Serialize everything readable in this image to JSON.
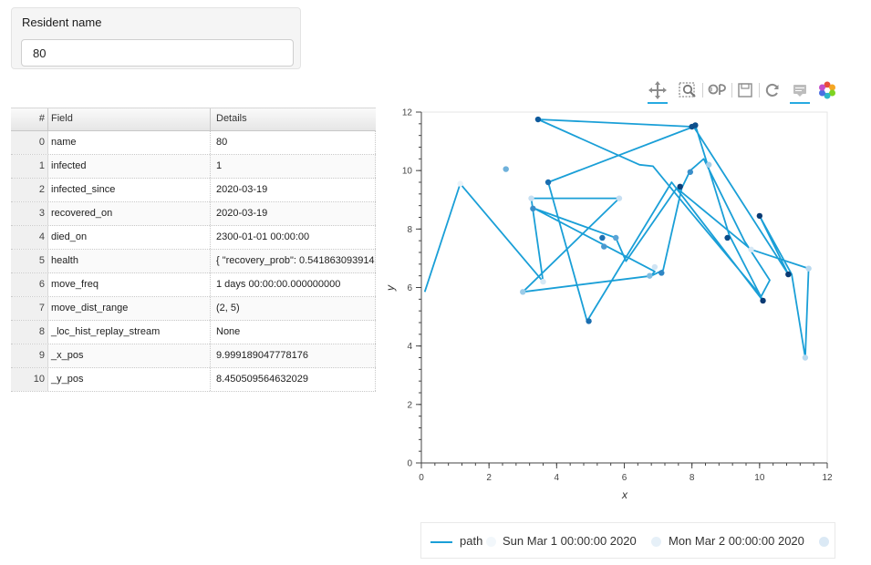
{
  "widget": {
    "label": "Resident name",
    "value": "80"
  },
  "table": {
    "headers": {
      "index": "#",
      "field": "Field",
      "details": "Details"
    },
    "rows": [
      {
        "idx": "0",
        "field": "name",
        "details": "80"
      },
      {
        "idx": "1",
        "field": "infected",
        "details": "1"
      },
      {
        "idx": "2",
        "field": "infected_since",
        "details": "2020-03-19"
      },
      {
        "idx": "3",
        "field": "recovered_on",
        "details": "2020-03-19"
      },
      {
        "idx": "4",
        "field": "died_on",
        "details": "2300-01-01 00:00:00"
      },
      {
        "idx": "5",
        "field": "health",
        "details": "{ \"recovery_prob\": 0.541863093914"
      },
      {
        "idx": "6",
        "field": "move_freq",
        "details": "1 days 00:00:00.000000000"
      },
      {
        "idx": "7",
        "field": "move_dist_range",
        "details": "(2, 5)"
      },
      {
        "idx": "8",
        "field": "_loc_hist_replay_stream",
        "details": "None"
      },
      {
        "idx": "9",
        "field": "_x_pos",
        "details": "9.999189047778176"
      },
      {
        "idx": "10",
        "field": "_y_pos",
        "details": "8.450509564632029"
      }
    ]
  },
  "toolbar": {
    "tools": [
      {
        "name": "pan-icon",
        "active": true
      },
      {
        "name": "box-zoom-icon",
        "active": false
      },
      {
        "name": "wheel-zoom-icon",
        "active": false
      },
      {
        "name": "save-icon",
        "active": false
      },
      {
        "name": "reset-icon",
        "active": false
      },
      {
        "name": "hover-icon",
        "active": true
      },
      {
        "name": "bokeh-logo-icon",
        "active": false
      }
    ]
  },
  "chart_data": {
    "type": "line",
    "xlabel": "x",
    "ylabel": "y",
    "xlim": [
      0,
      12
    ],
    "ylim": [
      0,
      12
    ],
    "xticks": [
      0,
      2,
      4,
      6,
      8,
      10,
      12
    ],
    "yticks": [
      0,
      2,
      4,
      6,
      8,
      10,
      12
    ],
    "grid": false,
    "line_color": "#1a9fd7",
    "path": [
      [
        0.1,
        5.85
      ],
      [
        1.15,
        9.55
      ],
      [
        3.6,
        6.2
      ],
      [
        3.25,
        9.05
      ],
      [
        5.85,
        9.05
      ],
      [
        3.0,
        5.85
      ],
      [
        6.8,
        6.4
      ],
      [
        7.15,
        6.6
      ],
      [
        7.7,
        9.4
      ],
      [
        7.95,
        10.0
      ],
      [
        8.35,
        10.4
      ],
      [
        9.55,
        7.6
      ],
      [
        10.3,
        6.25
      ],
      [
        10.05,
        5.7
      ],
      [
        7.95,
        8.6
      ],
      [
        6.85,
        10.15
      ],
      [
        6.45,
        10.2
      ],
      [
        3.45,
        11.75
      ],
      [
        8.0,
        11.5
      ],
      [
        8.1,
        11.55
      ],
      [
        9.1,
        7.8
      ],
      [
        10.1,
        5.55
      ],
      [
        7.4,
        9.6
      ],
      [
        4.9,
        4.85
      ],
      [
        3.75,
        9.6
      ],
      [
        8.05,
        11.5
      ],
      [
        10.85,
        6.45
      ],
      [
        10.0,
        8.45
      ],
      [
        10.95,
        6.45
      ],
      [
        11.35,
        3.6
      ],
      [
        11.45,
        6.65
      ],
      [
        9.75,
        7.3
      ],
      [
        7.55,
        9.4
      ],
      [
        6.05,
        6.9
      ],
      [
        5.75,
        7.7
      ],
      [
        3.35,
        8.7
      ],
      [
        6.9,
        6.55
      ],
      [
        6.75,
        6.35
      ]
    ],
    "points": [
      {
        "x": 1.15,
        "y": 9.55,
        "color": "#eaf3f9"
      },
      {
        "x": 3.6,
        "y": 6.2,
        "color": "#d6e8f5"
      },
      {
        "x": 3.25,
        "y": 9.05,
        "color": "#c6dff2"
      },
      {
        "x": 5.85,
        "y": 9.05,
        "color": "#c6dff2"
      },
      {
        "x": 3.0,
        "y": 5.85,
        "color": "#9ccce8"
      },
      {
        "x": 2.5,
        "y": 10.05,
        "color": "#6fb1db"
      },
      {
        "x": 8.5,
        "y": 10.2,
        "color": "#a4cfe9"
      },
      {
        "x": 7.95,
        "y": 9.95,
        "color": "#3a8ec9"
      },
      {
        "x": 3.3,
        "y": 8.7,
        "color": "#3a8ec9"
      },
      {
        "x": 5.75,
        "y": 7.7,
        "color": "#5aa4d6"
      },
      {
        "x": 5.4,
        "y": 7.4,
        "color": "#4a99cf"
      },
      {
        "x": 5.35,
        "y": 7.7,
        "color": "#1c72b4"
      },
      {
        "x": 6.75,
        "y": 6.4,
        "color": "#7fbde2"
      },
      {
        "x": 6.9,
        "y": 6.7,
        "color": "#cfe4f4"
      },
      {
        "x": 7.1,
        "y": 6.5,
        "color": "#2f86c4"
      },
      {
        "x": 4.95,
        "y": 4.85,
        "color": "#1a6eb0"
      },
      {
        "x": 3.75,
        "y": 9.6,
        "color": "#1a6eb0"
      },
      {
        "x": 3.45,
        "y": 11.75,
        "color": "#0e5a9c"
      },
      {
        "x": 8.0,
        "y": 11.5,
        "color": "#0d4f8c"
      },
      {
        "x": 8.1,
        "y": 11.55,
        "color": "#0d4f8c"
      },
      {
        "x": 7.65,
        "y": 9.45,
        "color": "#0b3f7a"
      },
      {
        "x": 9.05,
        "y": 7.7,
        "color": "#0b4c89"
      },
      {
        "x": 10.0,
        "y": 8.45,
        "color": "#0a3a73"
      },
      {
        "x": 10.85,
        "y": 6.45,
        "color": "#0a3a73"
      },
      {
        "x": 10.1,
        "y": 5.55,
        "color": "#0a3a73"
      },
      {
        "x": 9.75,
        "y": 7.3,
        "color": "#d6e8f5"
      },
      {
        "x": 11.45,
        "y": 6.65,
        "color": "#b9d9ef"
      },
      {
        "x": 11.35,
        "y": 3.6,
        "color": "#b9d9ef"
      }
    ]
  },
  "legend": {
    "items": [
      {
        "label": "path",
        "kind": "line",
        "color": "#1a9fd7"
      },
      {
        "label": "Sun Mar  1 00:00:00 2020",
        "kind": "dot",
        "color": "#f2f7fb"
      },
      {
        "label": "Mon Mar  2 00:00:00 2020",
        "kind": "dot",
        "color": "#e6f0f8"
      },
      {
        "label": "",
        "kind": "dot",
        "color": "#dbe9f5"
      }
    ]
  }
}
